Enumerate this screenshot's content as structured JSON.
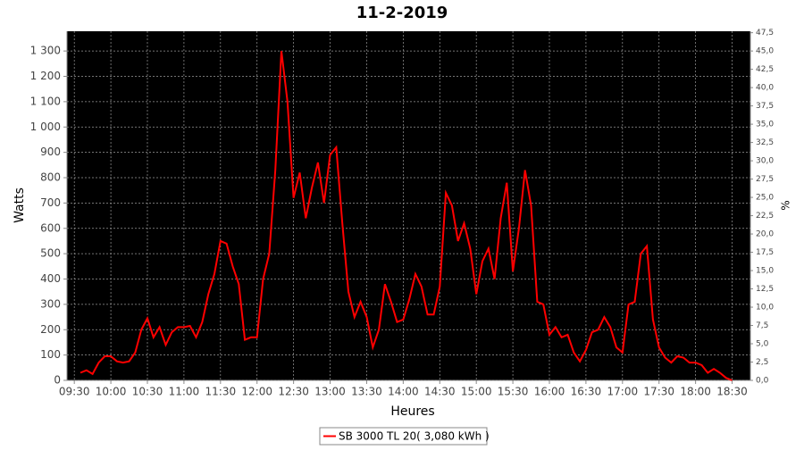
{
  "chart_data": {
    "type": "line",
    "title": "11-2-2019",
    "x_label": "Heures",
    "y_label": "Watts",
    "y2_label": "%",
    "x": [
      "09:35",
      "09:40",
      "09:45",
      "09:50",
      "09:55",
      "10:00",
      "10:05",
      "10:10",
      "10:15",
      "10:20",
      "10:25",
      "10:30",
      "10:35",
      "10:40",
      "10:45",
      "10:50",
      "10:55",
      "11:00",
      "11:05",
      "11:10",
      "11:15",
      "11:20",
      "11:25",
      "11:30",
      "11:35",
      "11:40",
      "11:45",
      "11:50",
      "11:55",
      "12:00",
      "12:05",
      "12:10",
      "12:15",
      "12:20",
      "12:25",
      "12:30",
      "12:35",
      "12:40",
      "12:45",
      "12:50",
      "12:55",
      "13:00",
      "13:05",
      "13:10",
      "13:15",
      "13:20",
      "13:25",
      "13:30",
      "13:35",
      "13:40",
      "13:45",
      "13:50",
      "13:55",
      "14:00",
      "14:05",
      "14:10",
      "14:15",
      "14:20",
      "14:25",
      "14:30",
      "14:35",
      "14:40",
      "14:45",
      "14:50",
      "14:55",
      "15:00",
      "15:05",
      "15:10",
      "15:15",
      "15:20",
      "15:25",
      "15:30",
      "15:35",
      "15:40",
      "15:45",
      "15:50",
      "15:55",
      "16:00",
      "16:05",
      "16:10",
      "16:15",
      "16:20",
      "16:25",
      "16:30",
      "16:35",
      "16:40",
      "16:45",
      "16:50",
      "16:55",
      "17:00",
      "17:05",
      "17:10",
      "17:15",
      "17:20",
      "17:25",
      "17:30",
      "17:35",
      "17:40",
      "17:45",
      "17:50",
      "17:55",
      "18:00",
      "18:05",
      "18:10",
      "18:15",
      "18:20",
      "18:25",
      "18:30"
    ],
    "series": [
      {
        "name": "SB 3000 TL 20( 3,080 kWh )",
        "color": "#ff0000",
        "values": [
          30,
          40,
          25,
          70,
          95,
          95,
          75,
          70,
          75,
          110,
          200,
          245,
          170,
          210,
          140,
          190,
          210,
          210,
          215,
          170,
          230,
          340,
          420,
          550,
          540,
          450,
          380,
          160,
          170,
          170,
          400,
          500,
          830,
          1300,
          1100,
          720,
          820,
          640,
          760,
          860,
          700,
          890,
          920,
          620,
          350,
          250,
          310,
          250,
          130,
          200,
          380,
          310,
          230,
          240,
          320,
          420,
          370,
          260,
          260,
          370,
          740,
          690,
          550,
          620,
          520,
          340,
          470,
          520,
          400,
          640,
          780,
          430,
          600,
          830,
          690,
          310,
          300,
          180,
          210,
          170,
          180,
          110,
          75,
          120,
          190,
          200,
          250,
          210,
          130,
          110,
          300,
          310,
          500,
          530,
          240,
          130,
          90,
          70,
          95,
          90,
          70,
          70,
          60,
          30,
          45,
          30,
          10,
          0
        ]
      }
    ],
    "xlim": [
      "09:24",
      "18:45"
    ],
    "xticks": [
      "09:30",
      "10:00",
      "10:30",
      "11:00",
      "11:30",
      "12:00",
      "12:30",
      "13:00",
      "13:30",
      "14:00",
      "14:30",
      "15:00",
      "15:30",
      "16:00",
      "16:30",
      "17:00",
      "17:30",
      "18:00",
      "18:30"
    ],
    "ylim": [
      0,
      1378
    ],
    "yticks": [
      0,
      100,
      200,
      300,
      400,
      500,
      600,
      700,
      800,
      900,
      {
        "value": 1000,
        "label": "1 000"
      },
      {
        "value": 1100,
        "label": "1 100"
      },
      {
        "value": 1200,
        "label": "1 200"
      },
      {
        "value": 1300,
        "label": "1 300"
      }
    ],
    "y2lim": [
      0,
      47.7
    ],
    "y2ticks": [
      {
        "value": 0,
        "label": "0,0"
      },
      {
        "value": 2.5,
        "label": "2,5"
      },
      {
        "value": 5,
        "label": "5,0"
      },
      {
        "value": 7.5,
        "label": "7,5"
      },
      {
        "value": 10,
        "label": "10,0"
      },
      {
        "value": 12.5,
        "label": "12,5"
      },
      {
        "value": 15,
        "label": "15,0"
      },
      {
        "value": 17.5,
        "label": "17,5"
      },
      {
        "value": 20,
        "label": "20,0"
      },
      {
        "value": 22.5,
        "label": "22,5"
      },
      {
        "value": 25,
        "label": "25,0"
      },
      {
        "value": 27.5,
        "label": "27,5"
      },
      {
        "value": 30,
        "label": "30,0"
      },
      {
        "value": 32.5,
        "label": "32,5"
      },
      {
        "value": 35,
        "label": "35,0"
      },
      {
        "value": 37.5,
        "label": "37,5"
      },
      {
        "value": 40,
        "label": "40,0"
      },
      {
        "value": 42.5,
        "label": "42,5"
      },
      {
        "value": 45,
        "label": "45,0"
      },
      {
        "value": 47.5,
        "label": "47,5"
      }
    ],
    "grid": true,
    "legend": "bottom"
  }
}
